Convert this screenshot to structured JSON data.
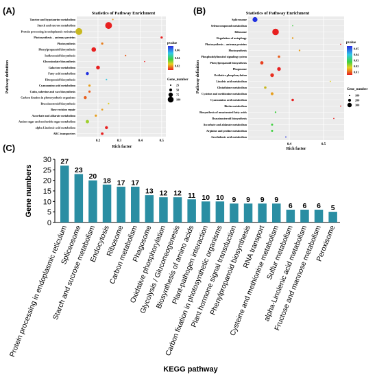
{
  "panel_a": {
    "label": "(A)",
    "title": "Statistics of Pathway Enrichment",
    "xlabel": "Rich factor",
    "ylabel": "Pathway definition",
    "legend_pvalue_title": "pvalue",
    "legend_gene_title": "Gene_number"
  },
  "panel_b": {
    "label": "(B)",
    "title": "Statistics of Pathway Enrichment",
    "xlabel": "Rich factor",
    "ylabel": "Pathway definition",
    "legend_pvalue_title": "pvalue",
    "legend_gene_title": "Gene_number"
  },
  "panel_c": {
    "label": "(C)"
  },
  "chart_data": [
    {
      "type": "scatter",
      "panel": "A",
      "title": "Statistics of Pathway Enrichment",
      "xlabel": "Rich factor",
      "ylabel": "Pathway definition",
      "xlim": [
        0.1,
        0.52
      ],
      "xticks": [
        "0.2",
        "0.3",
        "0.4",
        "0.5"
      ],
      "pvalue_legend": [
        "0.06",
        "0.04",
        "0.02"
      ],
      "size_legend": [
        "25",
        "50",
        "75",
        "100"
      ],
      "points": [
        {
          "label": "Taurine and hypotaurine metabolism",
          "x": 0.27,
          "color": "#e8a030",
          "size": 2
        },
        {
          "label": "Starch and sucrose metabolism",
          "x": 0.25,
          "color": "#e82020",
          "size": 9
        },
        {
          "label": "Protein processing in endoplasmic reticulum",
          "x": 0.11,
          "color": "#c8b820",
          "size": 9
        },
        {
          "label": "Photosynthesis – antenna proteins",
          "x": 0.5,
          "color": "#e82020",
          "size": 3
        },
        {
          "label": "Photosynthesis",
          "x": 0.22,
          "color": "#e88020",
          "size": 3
        },
        {
          "label": "Phenylpropanoid biosynthesis",
          "x": 0.18,
          "color": "#e82020",
          "size": 6
        },
        {
          "label": "Isoflavonoid biosynthesis",
          "x": 0.33,
          "color": "#e86020",
          "size": 2
        },
        {
          "label": "Glucosinolate biosynthesis",
          "x": 0.42,
          "color": "#e82020",
          "size": 1.5
        },
        {
          "label": "Galactose metabolism",
          "x": 0.2,
          "color": "#e82020",
          "size": 5
        },
        {
          "label": "Fatty acid metabolism",
          "x": 0.15,
          "color": "#2030e0",
          "size": 4
        },
        {
          "label": "Diterpenoid biosynthesis",
          "x": 0.24,
          "color": "#40c8e0",
          "size": 2
        },
        {
          "label": "Cyanoamino acid metabolism",
          "x": 0.16,
          "color": "#e8a020",
          "size": 3
        },
        {
          "label": "Cutin, suberine and wax biosynthesis",
          "x": 0.16,
          "color": "#e86020",
          "size": 3
        },
        {
          "label": "Carbon fixation in photosynthetic organisms",
          "x": 0.14,
          "color": "#e86020",
          "size": 4
        },
        {
          "label": "Brassinosteroid biosynthesis",
          "x": 0.25,
          "color": "#e0d020",
          "size": 2
        },
        {
          "label": "Base excision repair",
          "x": 0.22,
          "color": "#e8a020",
          "size": 2.5
        },
        {
          "label": "Ascorbate and aldarate metabolism",
          "x": 0.19,
          "color": "#e8a020",
          "size": 3
        },
        {
          "label": "Amino sugar and nucleotide sugar metabolism",
          "x": 0.15,
          "color": "#a0d030",
          "size": 4.5
        },
        {
          "label": "alpha-Linolenic acid metabolism",
          "x": 0.24,
          "color": "#e82020",
          "size": 4
        },
        {
          "label": "ABC transporters",
          "x": 0.22,
          "color": "#e82020",
          "size": 3.5
        }
      ]
    },
    {
      "type": "scatter",
      "panel": "B",
      "title": "Statistics of Pathway Enrichment",
      "xlabel": "Rich factor",
      "ylabel": "Pathway definition",
      "xlim": [
        0.28,
        0.56
      ],
      "xticks": [
        "0.4",
        "0.5"
      ],
      "pvalue_legend": [
        "0.05",
        "0.04",
        "0.03",
        "0.02",
        "0.01"
      ],
      "size_legend": [
        "100",
        "200",
        "300"
      ],
      "points": [
        {
          "label": "Spliceosome",
          "x": 0.3,
          "color": "#2030e0",
          "size": 6
        },
        {
          "label": "Selenocompound metabolism",
          "x": 0.41,
          "color": "#40d040",
          "size": 1.5
        },
        {
          "label": "Ribosome",
          "x": 0.36,
          "color": "#e82020",
          "size": 8
        },
        {
          "label": "Regulation of autophagy",
          "x": 0.41,
          "color": "#e8a020",
          "size": 2
        },
        {
          "label": "Photosynthesis – antenna proteins",
          "x": 0.55,
          "color": "#e82020",
          "size": 1.5
        },
        {
          "label": "Photosynthesis",
          "x": 0.43,
          "color": "#e8a020",
          "size": 2
        },
        {
          "label": "Phosphatidylinositol signaling system",
          "x": 0.37,
          "color": "#e86020",
          "size": 3
        },
        {
          "label": "Phenylpropanoid biosynthesis",
          "x": 0.32,
          "color": "#e84020",
          "size": 4
        },
        {
          "label": "Phagosome",
          "x": 0.37,
          "color": "#e82020",
          "size": 4.5
        },
        {
          "label": "Oxidative phosphorylation",
          "x": 0.35,
          "color": "#e83020",
          "size": 4.5
        },
        {
          "label": "Linoleic acid metabolism",
          "x": 0.52,
          "color": "#e0d020",
          "size": 1.5
        },
        {
          "label": "Glutathione metabolism",
          "x": 0.33,
          "color": "#c8b820",
          "size": 3
        },
        {
          "label": "Cysteine and methionine metabolism",
          "x": 0.35,
          "color": "#e8a020",
          "size": 3.5
        },
        {
          "label": "Cyanoamino acid metabolism",
          "x": 0.41,
          "color": "#e82020",
          "size": 3
        },
        {
          "label": "Biotin metabolism",
          "x": 0.55,
          "color": "#e82020",
          "size": 1.5
        },
        {
          "label": "Biosynthesis of unsaturated fatty acids",
          "x": 0.36,
          "color": "#40d040",
          "size": 2
        },
        {
          "label": "Brassinosteroid biosynthesis",
          "x": 0.53,
          "color": "#e82020",
          "size": 1.5
        },
        {
          "label": "Ascorbate and aldarate metabolism",
          "x": 0.35,
          "color": "#40d040",
          "size": 2.5
        },
        {
          "label": "Arginine and proline metabolism",
          "x": 0.35,
          "color": "#40d040",
          "size": 2.5
        },
        {
          "label": "Arachidonic acid metabolism",
          "x": 0.39,
          "color": "#2030e0",
          "size": 1.5
        }
      ]
    },
    {
      "type": "bar",
      "panel": "C",
      "xlabel": "KEGG pathway",
      "ylabel": "Gene numbers",
      "ylim": [
        0,
        30
      ],
      "yticks": [
        "0",
        "5",
        "10",
        "15",
        "20",
        "25",
        "30"
      ],
      "bar_color": "#2a8ea3",
      "categories": [
        "Protein processing in endoplasmic reticulum",
        "Spliceosome",
        "Starch and sucrose metabolism",
        "Endocytosis",
        "Ribosome",
        "Carbon metabolism",
        "Phagosome",
        "Oxidative phosphorylation",
        "Glycolysis / Gluconeogenesis",
        "Biosynthesis of amino acids",
        "Plant-pathogen interaction",
        "Carbon fixation in photosynthetic organisms",
        "Plant hormone signal transduction",
        "Phenylpropanoid biosynthesis",
        "RNA transport",
        "Cysteine and methionine metabolism",
        "Sulfur metabolism",
        "alpha-Linolenic acid metabolism",
        "Fructose and mannose metabolism",
        "Peroxisome"
      ],
      "values": [
        27,
        23,
        20,
        18,
        17,
        17,
        13,
        12,
        12,
        11,
        10,
        10,
        9,
        9,
        9,
        9,
        6,
        6,
        6,
        5
      ]
    }
  ]
}
